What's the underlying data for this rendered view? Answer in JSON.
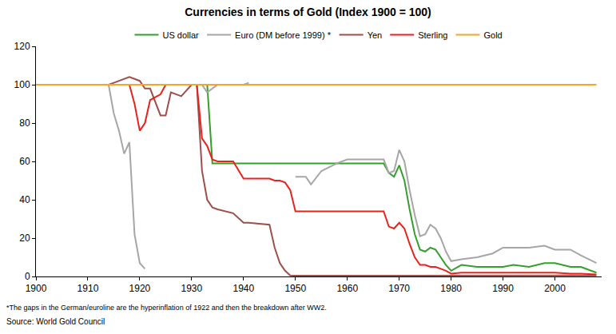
{
  "chart_data": {
    "type": "line",
    "title": "Currencies in terms of Gold (Index 1900 = 100)",
    "footnote": "*The gaps in the German/euroline are the hyperinflation of 1922 and then the breakdown after WW2.",
    "source": "Source: World Gold Council",
    "x": [
      1900,
      1905,
      1910,
      1914,
      1915,
      1916,
      1917,
      1918,
      1919,
      1920,
      1921,
      1922,
      1924,
      1925,
      1926,
      1928,
      1930,
      1931,
      1932,
      1933,
      1934,
      1935,
      1938,
      1940,
      1941,
      1945,
      1946,
      1947,
      1948,
      1949,
      1950,
      1952,
      1953,
      1955,
      1958,
      1960,
      1965,
      1967,
      1968,
      1969,
      1970,
      1971,
      1972,
      1973,
      1974,
      1975,
      1976,
      1977,
      1978,
      1979,
      1980,
      1982,
      1985,
      1988,
      1990,
      1992,
      1995,
      1998,
      2000,
      2003,
      2005,
      2008
    ],
    "series": [
      {
        "name": "US dollar",
        "color": "#33a02c",
        "values": [
          100,
          100,
          100,
          100,
          100,
          100,
          100,
          100,
          100,
          100,
          100,
          100,
          100,
          100,
          100,
          100,
          100,
          100,
          100,
          100,
          59,
          59,
          59,
          59,
          59,
          59,
          59,
          59,
          59,
          59,
          59,
          59,
          59,
          59,
          59,
          59,
          59,
          59,
          54,
          52,
          58,
          50,
          35,
          22,
          14,
          13,
          15,
          14,
          10,
          6,
          3,
          6,
          5,
          5,
          5,
          6,
          5,
          7,
          7,
          5,
          5,
          2
        ]
      },
      {
        "name": "Euro (DM before 1999) *",
        "color": "#a6a6a6",
        "values": [
          100,
          100,
          100,
          100,
          85,
          76,
          64,
          70,
          22,
          7,
          4,
          null,
          100,
          100,
          100,
          100,
          100,
          100,
          100,
          96,
          98,
          100,
          100,
          100,
          101,
          null,
          null,
          null,
          null,
          null,
          52,
          52,
          48,
          55,
          59,
          61,
          61,
          61,
          54,
          55,
          66,
          60,
          45,
          32,
          21,
          22,
          27,
          25,
          20,
          13,
          8,
          9,
          10,
          12,
          15,
          15,
          15,
          16,
          14,
          14,
          11,
          7
        ]
      },
      {
        "name": "Yen",
        "color": "#9e4f4a",
        "values": [
          100,
          100,
          100,
          100,
          101,
          102,
          103,
          104,
          103,
          102,
          98,
          98,
          84,
          84,
          96,
          94,
          100,
          100,
          55,
          40,
          36,
          35,
          33,
          28,
          28,
          27,
          15,
          7,
          3,
          0.5,
          0.4,
          0.4,
          0.4,
          0.4,
          0.4,
          0.4,
          0.4,
          0.4,
          0.4,
          0.4,
          0.4,
          0.4,
          0.4,
          0.4,
          0.4,
          0.4,
          0.4,
          0.4,
          0.4,
          0.4,
          0.5,
          0.5,
          0.5,
          0.5,
          0.5,
          0.5,
          0.5,
          0.5,
          0.5,
          0.5,
          0.5,
          0.5
        ]
      },
      {
        "name": "Sterling",
        "color": "#e8231d",
        "values": [
          100,
          100,
          100,
          100,
          100,
          100,
          100,
          100,
          90,
          76,
          80,
          92,
          95,
          100,
          100,
          100,
          100,
          100,
          72,
          68,
          61,
          60,
          60,
          51,
          51,
          51,
          50,
          50,
          49,
          45,
          34,
          34,
          34,
          34,
          34,
          34,
          34,
          34,
          26,
          25,
          28,
          25,
          17,
          10,
          6,
          6,
          5,
          5,
          4,
          3,
          1.5,
          2,
          2,
          2,
          2,
          2,
          2,
          2,
          2,
          1.5,
          1.5,
          1
        ]
      },
      {
        "name": "Gold",
        "color": "#f5a623",
        "values": [
          100,
          100,
          100,
          100,
          100,
          100,
          100,
          100,
          100,
          100,
          100,
          100,
          100,
          100,
          100,
          100,
          100,
          100,
          100,
          100,
          100,
          100,
          100,
          100,
          100,
          100,
          100,
          100,
          100,
          100,
          100,
          100,
          100,
          100,
          100,
          100,
          100,
          100,
          100,
          100,
          100,
          100,
          100,
          100,
          100,
          100,
          100,
          100,
          100,
          100,
          100,
          100,
          100,
          100,
          100,
          100,
          100,
          100,
          100,
          100,
          100,
          100
        ]
      }
    ],
    "xlim": [
      1900,
      2009
    ],
    "xticks": [
      1900,
      1910,
      1920,
      1930,
      1940,
      1950,
      1960,
      1970,
      1980,
      1990,
      2000
    ],
    "ylim": [
      0,
      120
    ],
    "yticks": [
      0,
      20,
      40,
      60,
      80,
      100,
      120
    ],
    "grid": false,
    "legend": "top"
  }
}
